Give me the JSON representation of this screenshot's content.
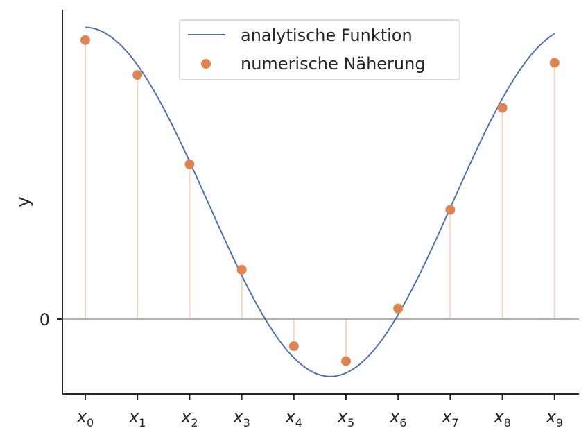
{
  "chart_data": {
    "type": "line",
    "title": "",
    "xlabel": "",
    "ylabel": "y",
    "ylim": [
      -0.25,
      1.35
    ],
    "x_tick_labels": [
      {
        "base": "x",
        "sub": "0"
      },
      {
        "base": "x",
        "sub": "1"
      },
      {
        "base": "x",
        "sub": "2"
      },
      {
        "base": "x",
        "sub": "3"
      },
      {
        "base": "x",
        "sub": "4"
      },
      {
        "base": "x",
        "sub": "5"
      },
      {
        "base": "x",
        "sub": "6"
      },
      {
        "base": "x",
        "sub": "7"
      },
      {
        "base": "x",
        "sub": "8"
      },
      {
        "base": "x",
        "sub": "9"
      }
    ],
    "y_ticks": [
      {
        "value": 0,
        "label": "0"
      }
    ],
    "legend_position": "top-center",
    "series": [
      {
        "name": "analytische Funktion",
        "kind": "line",
        "color": "#4c72b0",
        "function": "cosine",
        "x_range": [
          0,
          9
        ],
        "min_at_x": 4.7,
        "max_value": 1.27,
        "min_value": -0.25
      },
      {
        "name": "numerische Näherung",
        "kind": "scatter",
        "color": "#dd8452",
        "stems": true,
        "x": [
          0,
          1,
          2,
          3,
          4,
          5,
          6,
          7,
          8,
          9
        ],
        "values": [
          1.215,
          1.063,
          0.674,
          0.215,
          -0.118,
          -0.183,
          0.046,
          0.476,
          0.92,
          1.116
        ]
      }
    ],
    "zero_line": true,
    "grid": false
  }
}
